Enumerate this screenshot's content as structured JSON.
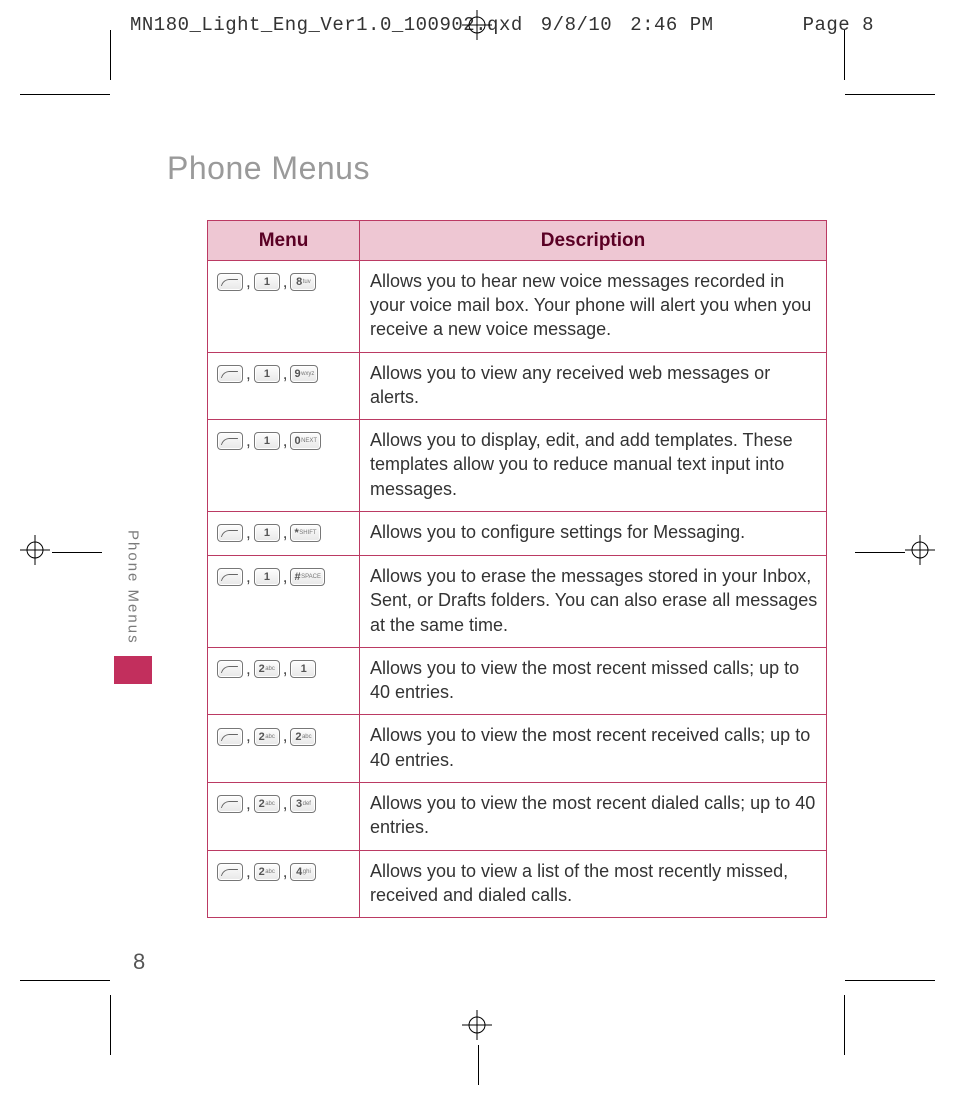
{
  "slug": {
    "filename": "MN180_Light_Eng_Ver1.0_100902.qxd",
    "date": "9/8/10",
    "time": "2:46 PM",
    "page_label": "Page 8"
  },
  "title": "Phone Menus",
  "side_tab": {
    "label": "Phone Menus"
  },
  "page_number": "8",
  "table": {
    "header_bg": "#eec7d3",
    "border_color": "#bb3a63",
    "col_menu": "Menu",
    "col_desc": "Description",
    "rows": [
      {
        "keys": [
          "soft",
          "1",
          "8 tuv"
        ],
        "desc": "Allows you to hear new voice messages recorded in your voice mail box. Your phone will alert you when you receive a new voice message."
      },
      {
        "keys": [
          "soft",
          "1",
          "9 wxyz"
        ],
        "desc": "Allows you to view any received web messages or alerts."
      },
      {
        "keys": [
          "soft",
          "1",
          "0 NEXT"
        ],
        "desc": "Allows you to display, edit, and add templates. These templates allow you to reduce manual text input into messages."
      },
      {
        "keys": [
          "soft",
          "1",
          "* SHIFT"
        ],
        "desc": "Allows you to configure settings for Messaging."
      },
      {
        "keys": [
          "soft",
          "1",
          "# SPACE"
        ],
        "desc": "Allows you to erase the messages stored in your Inbox, Sent, or Drafts folders. You can also erase all messages at the same time."
      },
      {
        "keys": [
          "soft",
          "2 abc",
          "1"
        ],
        "desc": "Allows you to view the most recent missed calls; up to 40 entries."
      },
      {
        "keys": [
          "soft",
          "2 abc",
          "2 abc"
        ],
        "desc": "Allows you to view the most recent received calls; up to 40 entries."
      },
      {
        "keys": [
          "soft",
          "2 abc",
          "3 def"
        ],
        "desc": "Allows you to view the most recent dialed calls; up to 40 entries."
      },
      {
        "keys": [
          "soft",
          "2 abc",
          "4 ghi"
        ],
        "desc": "Allows you to view a list of the most recently missed, received and dialed calls."
      }
    ]
  }
}
